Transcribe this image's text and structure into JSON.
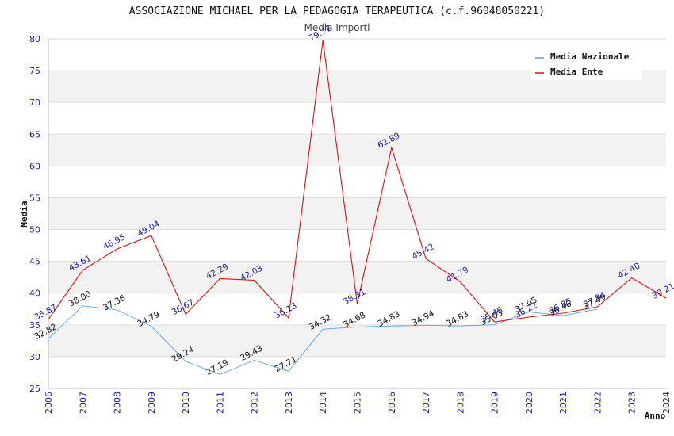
{
  "chart_data": {
    "type": "line",
    "title": "ASSOCIAZIONE MICHAEL PER LA PEDAGOGIA TERAPEUTICA (c.f.96048050221)",
    "subtitle": "Media Importi",
    "xlabel": "Anno",
    "ylabel": "Media",
    "ylim": [
      25,
      80
    ],
    "yticks": [
      "25",
      "30",
      "35",
      "40",
      "45",
      "50",
      "55",
      "60",
      "65",
      "70",
      "75",
      "80"
    ],
    "categories": [
      "2006",
      "2007",
      "2008",
      "2009",
      "2010",
      "2011",
      "2012",
      "2013",
      "2014",
      "2015",
      "2016",
      "2017",
      "2018",
      "2019",
      "2020",
      "2021",
      "2022",
      "2023",
      "2024"
    ],
    "grid": true,
    "legend_position": "top-right",
    "series": [
      {
        "name": "Media Nazionale",
        "color": "#5ba3e0",
        "values": [
          32.82,
          38.0,
          37.36,
          34.79,
          29.24,
          27.19,
          29.43,
          27.71,
          34.32,
          34.68,
          34.83,
          34.94,
          34.83,
          35.03,
          37.05,
          36.46,
          37.49,
          null,
          null
        ],
        "labels": [
          "32.82",
          "38.00",
          "37.36",
          "34.79",
          "29.24",
          "27.19",
          "29.43",
          "27.71",
          "34.32",
          "34.68",
          "34.83",
          "34.94",
          "34.83",
          "35.03",
          "37.05",
          "36.46",
          "37.49",
          "",
          ""
        ]
      },
      {
        "name": "Media Ente",
        "color": "#e01010",
        "values": [
          35.87,
          43.61,
          46.95,
          49.04,
          36.67,
          42.29,
          42.03,
          36.13,
          79.77,
          38.31,
          62.89,
          45.42,
          41.79,
          35.48,
          36.22,
          36.85,
          37.84,
          42.4,
          39.21
        ],
        "labels": [
          "35.87",
          "43.61",
          "46.95",
          "49.04",
          "36.67",
          "42.29",
          "42.03",
          "36.13",
          "79.77",
          "38.31",
          "62.89",
          "45.42",
          "41.79",
          "35.48",
          "36.22",
          "36.85",
          "37.84",
          "42.40",
          "39.21"
        ]
      }
    ]
  }
}
